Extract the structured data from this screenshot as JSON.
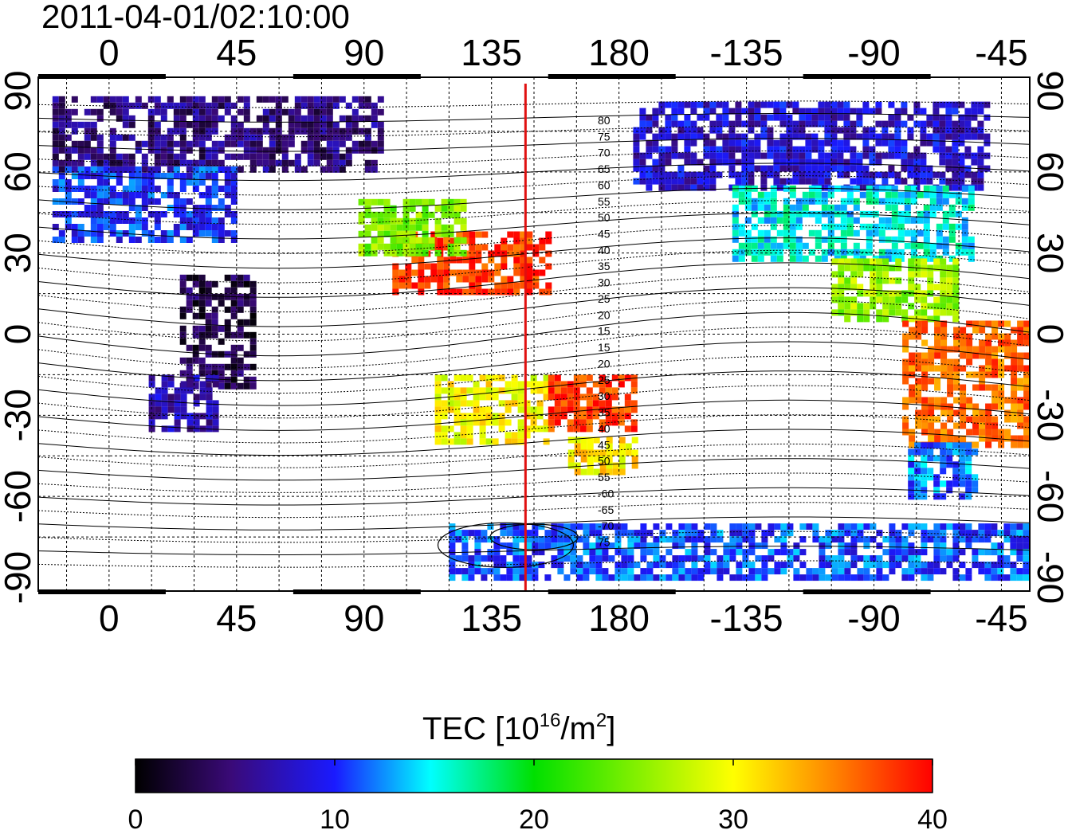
{
  "timestamp": "2011-04-01/02:10:00",
  "map": {
    "lon_ticks_top": [
      "0",
      "45",
      "90",
      "135",
      "180",
      "-135",
      "-90",
      "-45"
    ],
    "lon_ticks_bottom": [
      "0",
      "45",
      "90",
      "135",
      "180",
      "-135",
      "-90",
      "-45"
    ],
    "lat_ticks_left": [
      "90",
      "60",
      "30",
      "0",
      "-30",
      "-60",
      "-90"
    ],
    "lat_ticks_right": [
      "90",
      "60",
      "30",
      "0",
      "-30",
      "-60",
      "-90"
    ],
    "lon_range": [
      -25,
      325
    ],
    "lat_range": [
      -95,
      95
    ],
    "terminator_longitude": 147,
    "terminator_color": "#e01010",
    "contour_labels": [
      "80",
      "75",
      "70",
      "65",
      "60",
      "55",
      "50",
      "45",
      "40",
      "35",
      "30",
      "25",
      "20",
      "15",
      "15",
      "20",
      "25",
      "30",
      "35",
      "40",
      "45",
      "50",
      "55",
      "-60",
      "-65",
      "-70",
      "75"
    ]
  },
  "colorbar": {
    "title_main": "TEC  [10",
    "title_sup1": "16",
    "title_mid": "/m",
    "title_sup2": "2",
    "title_end": "]",
    "ticks": [
      "0",
      "10",
      "20",
      "30",
      "40"
    ],
    "range": [
      0,
      40
    ],
    "colors": [
      "#000000",
      "#3a0a78",
      "#1a1aff",
      "#00ffff",
      "#00e000",
      "#ffff00",
      "#ff8000",
      "#ff0000"
    ]
  },
  "tec_regions": [
    {
      "name": "arctic-europe",
      "lon": [
        -20,
        95
      ],
      "lat": [
        62,
        88
      ],
      "tec": 5
    },
    {
      "name": "europe",
      "lon": [
        -20,
        45
      ],
      "lat": [
        35,
        62
      ],
      "tec": 10
    },
    {
      "name": "north-america",
      "lon": [
        -175,
        -50
      ],
      "lat": [
        55,
        86
      ],
      "tec": 8
    },
    {
      "name": "north-america-mid",
      "lon": [
        -140,
        -55
      ],
      "lat": [
        28,
        55
      ],
      "tec": 15
    },
    {
      "name": "central-america",
      "lon": [
        -105,
        -60
      ],
      "lat": [
        5,
        28
      ],
      "tec": 26
    },
    {
      "name": "south-america",
      "lon": [
        -80,
        -35
      ],
      "lat": [
        -40,
        5
      ],
      "tec": 36
    },
    {
      "name": "south-america-south",
      "lon": [
        -78,
        -55
      ],
      "lat": [
        -60,
        -40
      ],
      "tec": 12
    },
    {
      "name": "africa",
      "lon": [
        25,
        50
      ],
      "lat": [
        -20,
        22
      ],
      "tec": 3
    },
    {
      "name": "south-africa",
      "lon": [
        14,
        38
      ],
      "lat": [
        -36,
        -15
      ],
      "tec": 7
    },
    {
      "name": "east-asia",
      "lon": [
        100,
        155
      ],
      "lat": [
        15,
        38
      ],
      "tec": 38
    },
    {
      "name": "china",
      "lon": [
        88,
        125
      ],
      "lat": [
        30,
        50
      ],
      "tec": 25
    },
    {
      "name": "australia",
      "lon": [
        115,
        155
      ],
      "lat": [
        -40,
        -15
      ],
      "tec": 30
    },
    {
      "name": "tasman",
      "lon": [
        155,
        185
      ],
      "lat": [
        -35,
        -15
      ],
      "tec": 38
    },
    {
      "name": "new-zealand",
      "lon": [
        162,
        185
      ],
      "lat": [
        -50,
        -38
      ],
      "tec": 31
    },
    {
      "name": "antarctica",
      "lon": [
        120,
        325
      ],
      "lat": [
        -90,
        -70
      ],
      "tec": 11
    }
  ]
}
